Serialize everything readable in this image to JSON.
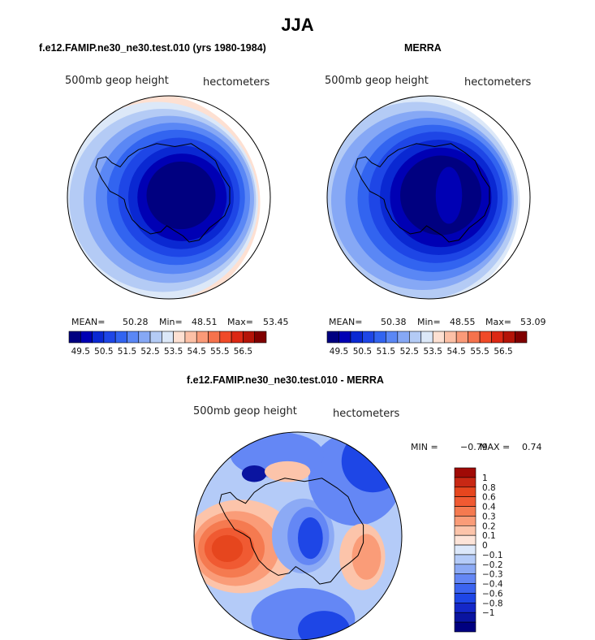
{
  "figure": {
    "title": "JJA",
    "panel_left_title": "f.e12.FAMIP.ne30_ne30.test.010 (yrs 1980-1984)",
    "panel_right_title": "MERRA",
    "panel_diff_title": "f.e12.FAMIP.ne30_ne30.test.010 - MERRA",
    "variable_label": "500mb geop height",
    "units_label": "hectometers"
  },
  "colors": {
    "mean_scale": [
      "#000080",
      "#0000b4",
      "#0a28d2",
      "#1e46e6",
      "#3264f0",
      "#5a87f5",
      "#86a8f5",
      "#b4cbf5",
      "#dce8f8",
      "#fde0d2",
      "#fcc0a6",
      "#fa9a78",
      "#f5724c",
      "#f04a28",
      "#dc2814",
      "#b41408",
      "#800000"
    ],
    "diff_scale": [
      "#000080",
      "#0a14a0",
      "#1428c8",
      "#1e46e6",
      "#3c64f0",
      "#6487f5",
      "#8caaf5",
      "#b4cbf8",
      "#dce8fa",
      "#fde4d8",
      "#fcc4aa",
      "#fa9c78",
      "#f57a50",
      "#f05a32",
      "#e6461e",
      "#c82814",
      "#a00a06"
    ]
  },
  "chart_data": [
    {
      "type": "heatmap",
      "name": "model",
      "title": "f.e12.FAMIP.ne30_ne30.test.010 (yrs 1980-1984)",
      "projection": "south-polar-stereographic",
      "variable": "500mb geop height",
      "units": "hectometers",
      "stats": {
        "mean_label": "MEAN=",
        "mean": "50.28",
        "min_label": "Min=",
        "min": "48.51",
        "max_label": "Max=",
        "max": "53.45"
      },
      "colorbar_ticks": [
        "49.5",
        "50.5",
        "51.5",
        "52.5",
        "53.5",
        "54.5",
        "55.5",
        "56.5"
      ],
      "levels": [
        49,
        49.5,
        50,
        50.5,
        51,
        51.5,
        52,
        52.5,
        53,
        53.5,
        54,
        54.5,
        55,
        55.5,
        56,
        56.5
      ]
    },
    {
      "type": "heatmap",
      "name": "obs",
      "title": "MERRA",
      "projection": "south-polar-stereographic",
      "variable": "500mb geop height",
      "units": "hectometers",
      "stats": {
        "mean_label": "MEAN=",
        "mean": "50.38",
        "min_label": "Min=",
        "min": "48.55",
        "max_label": "Max=",
        "max": "53.09"
      },
      "colorbar_ticks": [
        "49.5",
        "50.5",
        "51.5",
        "52.5",
        "53.5",
        "54.5",
        "55.5",
        "56.5"
      ],
      "levels": [
        49,
        49.5,
        50,
        50.5,
        51,
        51.5,
        52,
        52.5,
        53,
        53.5,
        54,
        54.5,
        55,
        55.5,
        56,
        56.5
      ]
    },
    {
      "type": "heatmap",
      "name": "difference",
      "title": "f.e12.FAMIP.ne30_ne30.test.010 - MERRA",
      "projection": "south-polar-stereographic",
      "variable": "500mb geop height",
      "units": "hectometers",
      "stats": {
        "min_label": "MIN =",
        "min": "−0.79",
        "max_label": "MAX =",
        "max": "0.74"
      },
      "colorbar_ticks": [
        "1",
        "0.8",
        "0.6",
        "0.4",
        "0.3",
        "0.2",
        "0.1",
        "0",
        "−0.1",
        "−0.2",
        "−0.3",
        "−0.4",
        "−0.6",
        "−0.8",
        "−1"
      ],
      "levels": [
        -1,
        -0.8,
        -0.6,
        -0.4,
        -0.3,
        -0.2,
        -0.1,
        0,
        0.1,
        0.2,
        0.3,
        0.4,
        0.6,
        0.8,
        1
      ]
    }
  ]
}
